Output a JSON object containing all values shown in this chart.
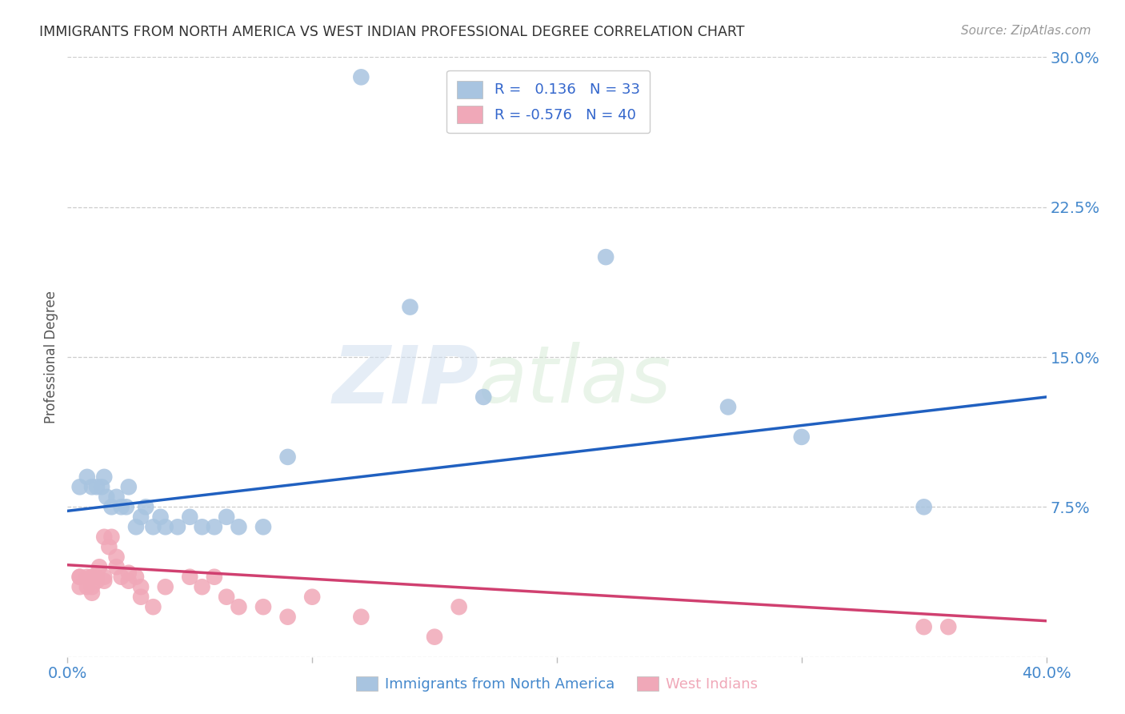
{
  "title": "IMMIGRANTS FROM NORTH AMERICA VS WEST INDIAN PROFESSIONAL DEGREE CORRELATION CHART",
  "source": "Source: ZipAtlas.com",
  "ylabel": "Professional Degree",
  "xlim": [
    0.0,
    0.4
  ],
  "ylim": [
    0.0,
    0.3
  ],
  "xticks": [
    0.0,
    0.1,
    0.2,
    0.3,
    0.4
  ],
  "xtick_labels": [
    "0.0%",
    "",
    "",
    "",
    "40.0%"
  ],
  "yticks": [
    0.0,
    0.075,
    0.15,
    0.225,
    0.3
  ],
  "ytick_labels": [
    "",
    "7.5%",
    "15.0%",
    "22.5%",
    "30.0%"
  ],
  "blue_R": 0.136,
  "blue_N": 33,
  "pink_R": -0.576,
  "pink_N": 40,
  "blue_color": "#a8c4e0",
  "pink_color": "#f0a8b8",
  "blue_line_color": "#2060c0",
  "pink_line_color": "#d04070",
  "watermark_zip": "ZIP",
  "watermark_atlas": "atlas",
  "blue_scatter_x": [
    0.005,
    0.008,
    0.01,
    0.012,
    0.014,
    0.015,
    0.016,
    0.018,
    0.02,
    0.022,
    0.024,
    0.025,
    0.028,
    0.03,
    0.032,
    0.035,
    0.038,
    0.04,
    0.045,
    0.05,
    0.055,
    0.06,
    0.065,
    0.07,
    0.08,
    0.09,
    0.12,
    0.14,
    0.17,
    0.22,
    0.27,
    0.3,
    0.35
  ],
  "blue_scatter_y": [
    0.085,
    0.09,
    0.085,
    0.085,
    0.085,
    0.09,
    0.08,
    0.075,
    0.08,
    0.075,
    0.075,
    0.085,
    0.065,
    0.07,
    0.075,
    0.065,
    0.07,
    0.065,
    0.065,
    0.07,
    0.065,
    0.065,
    0.07,
    0.065,
    0.065,
    0.1,
    0.29,
    0.175,
    0.13,
    0.2,
    0.125,
    0.11,
    0.075
  ],
  "pink_scatter_x": [
    0.005,
    0.005,
    0.005,
    0.008,
    0.008,
    0.01,
    0.01,
    0.01,
    0.01,
    0.012,
    0.012,
    0.013,
    0.015,
    0.015,
    0.015,
    0.017,
    0.018,
    0.02,
    0.02,
    0.022,
    0.025,
    0.025,
    0.028,
    0.03,
    0.03,
    0.035,
    0.04,
    0.05,
    0.055,
    0.06,
    0.065,
    0.07,
    0.08,
    0.09,
    0.1,
    0.12,
    0.15,
    0.16,
    0.35,
    0.36
  ],
  "pink_scatter_y": [
    0.04,
    0.04,
    0.035,
    0.04,
    0.035,
    0.04,
    0.035,
    0.04,
    0.032,
    0.04,
    0.038,
    0.045,
    0.04,
    0.038,
    0.06,
    0.055,
    0.06,
    0.05,
    0.045,
    0.04,
    0.042,
    0.038,
    0.04,
    0.035,
    0.03,
    0.025,
    0.035,
    0.04,
    0.035,
    0.04,
    0.03,
    0.025,
    0.025,
    0.02,
    0.03,
    0.02,
    0.01,
    0.025,
    0.015,
    0.015
  ],
  "background_color": "#ffffff",
  "grid_color": "#cccccc",
  "title_color": "#333333",
  "tick_label_color": "#4488cc",
  "pink_label_color": "#f0a8b8"
}
